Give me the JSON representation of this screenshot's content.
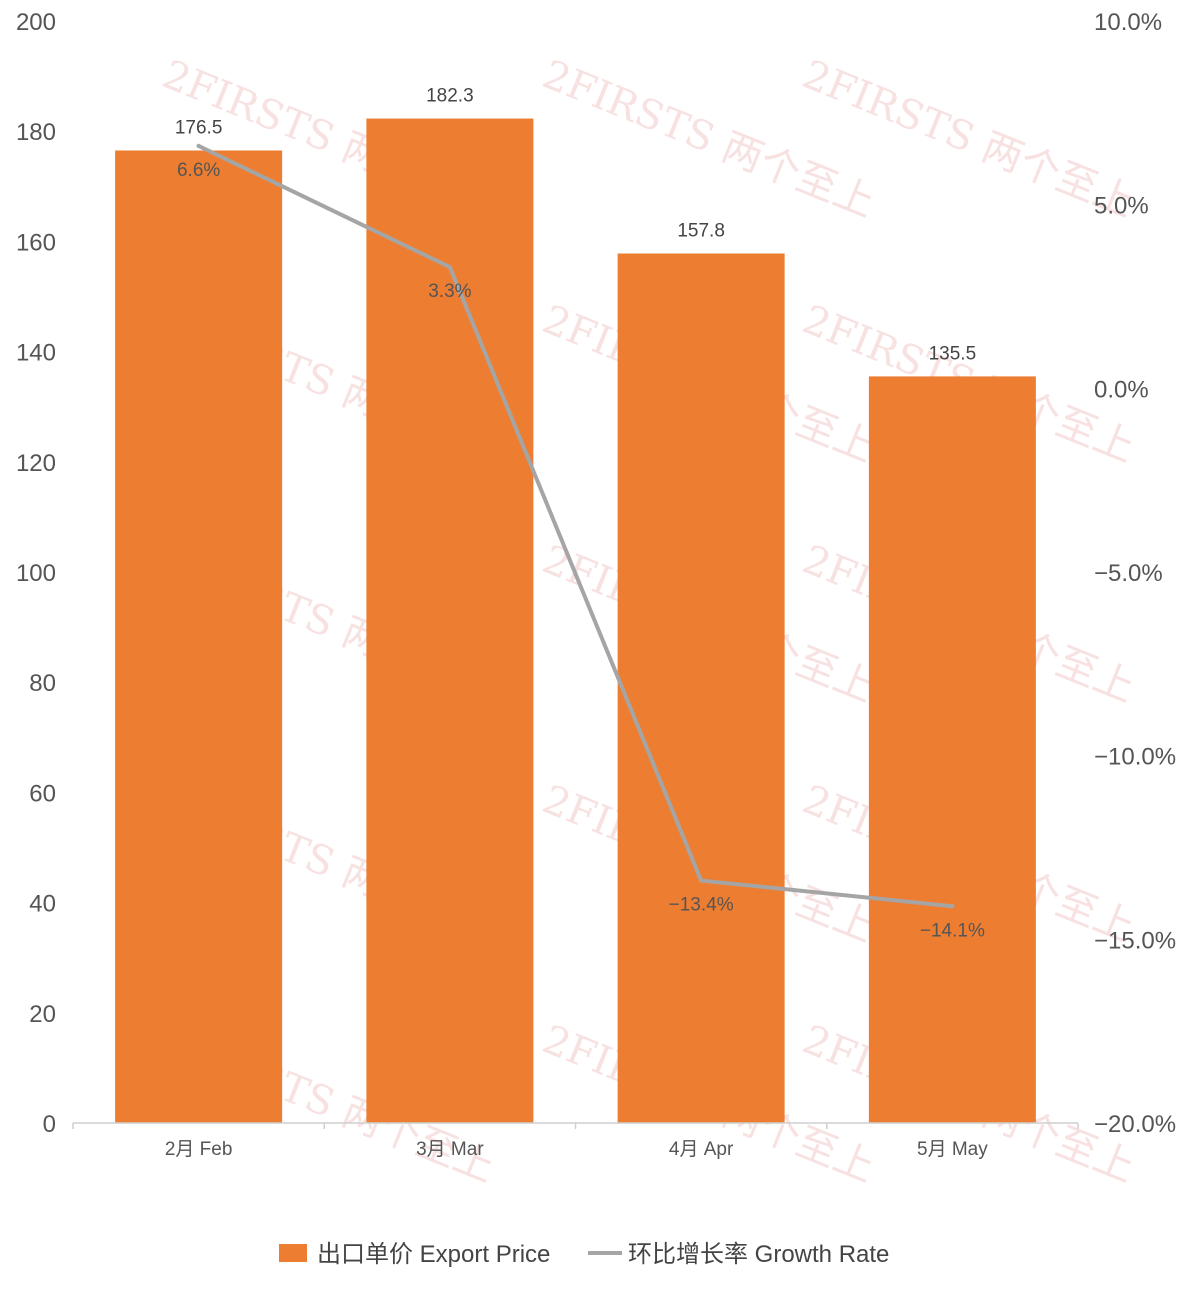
{
  "chart_data": {
    "type": "bar",
    "categories": [
      "2月 Feb",
      "3月 Mar",
      "4月 Apr",
      "5月 May"
    ],
    "series": [
      {
        "name": "出口单价 Export Price",
        "type": "bar",
        "axis": "left",
        "color": "#ED7D31",
        "values": [
          176.5,
          182.3,
          157.8,
          135.5
        ],
        "labels": [
          "176.5",
          "182.3",
          "157.8",
          "135.5"
        ]
      },
      {
        "name": "环比增长率 Growth Rate",
        "type": "line",
        "axis": "right",
        "color": "#A5A5A5",
        "values": [
          6.6,
          3.3,
          -13.4,
          -14.1
        ],
        "labels": [
          "6.6%",
          "3.3%",
          "−13.4%",
          "−14.1%"
        ]
      }
    ],
    "y_left": {
      "ylim": [
        0,
        200
      ],
      "ticks": [
        "0",
        "20",
        "40",
        "60",
        "80",
        "100",
        "120",
        "140",
        "160",
        "180",
        "200"
      ]
    },
    "y_right": {
      "ylim": [
        -20,
        10
      ],
      "ticks": [
        "−20.0%",
        "−15.0%",
        "−10.0%",
        "−5.0%",
        "0.0%",
        "5.0%",
        "10.0%"
      ]
    },
    "grid": false,
    "legend": "bottom-center"
  },
  "watermark": {
    "text": "2FIRSTS 两个至上",
    "color": "#f2c9c9"
  }
}
